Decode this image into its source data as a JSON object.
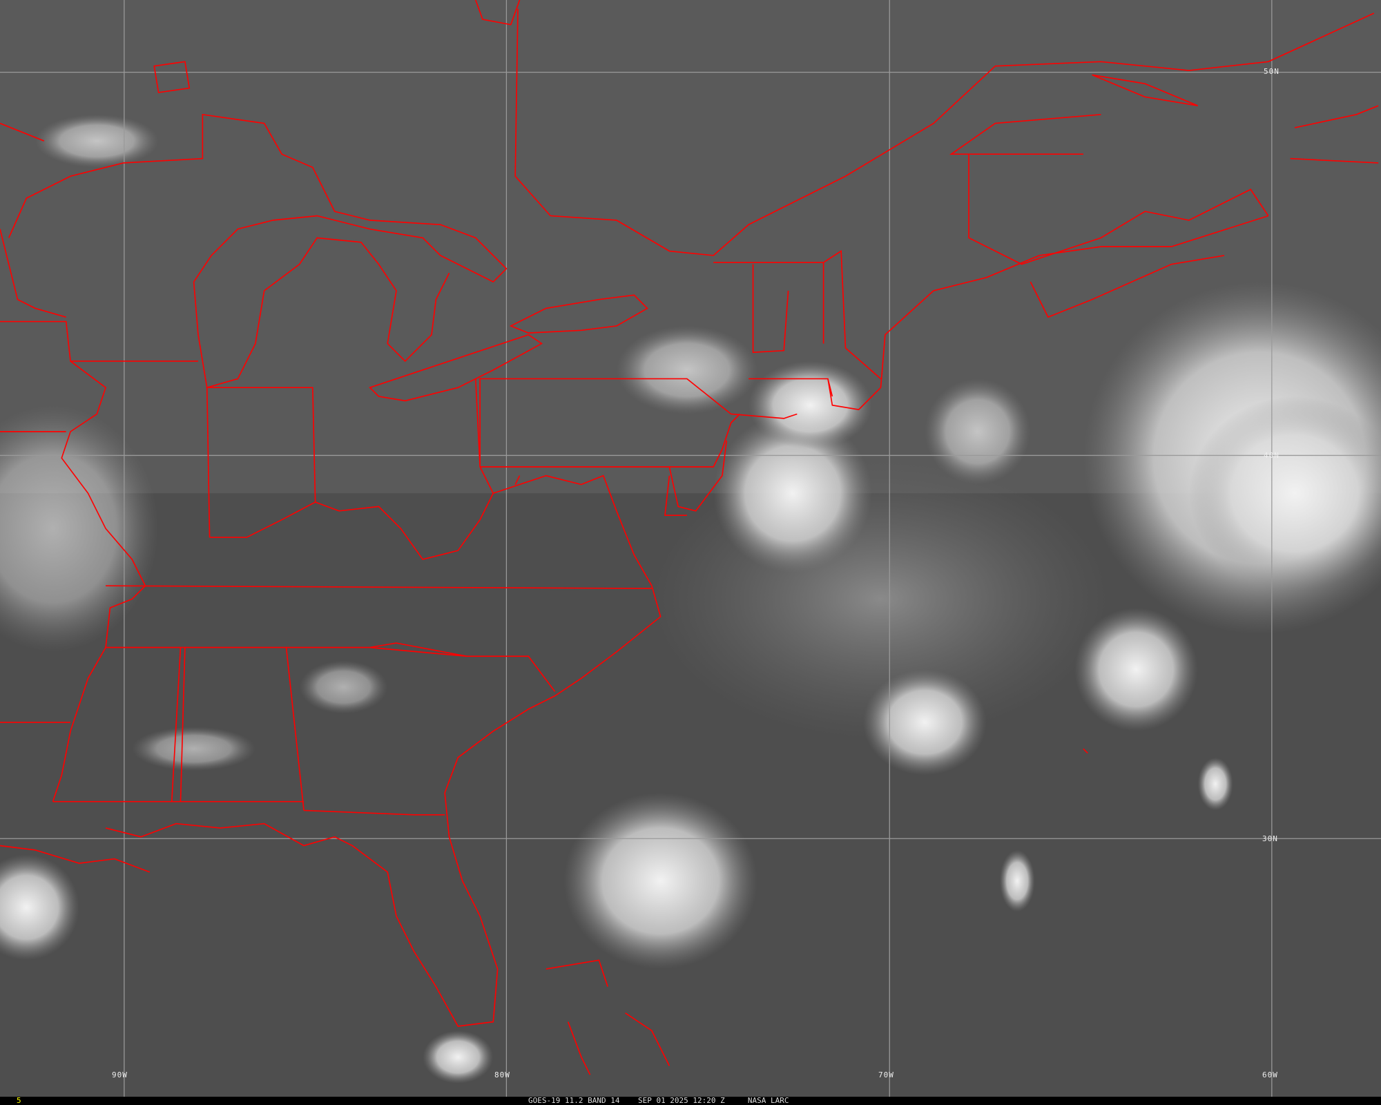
{
  "image": {
    "satellite_caption": "GOES-19 11.2 BAND 14",
    "datetime": "SEP 01 2025 12:20 Z",
    "source": "NASA LARC",
    "frame_number": "5",
    "border_color": "#ff0000",
    "grid_color": "#9a9a9a"
  },
  "grid": {
    "latitudes": [
      "50N",
      "40N",
      "30N"
    ],
    "longitudes": [
      "90W",
      "80W",
      "70W",
      "60W"
    ]
  }
}
